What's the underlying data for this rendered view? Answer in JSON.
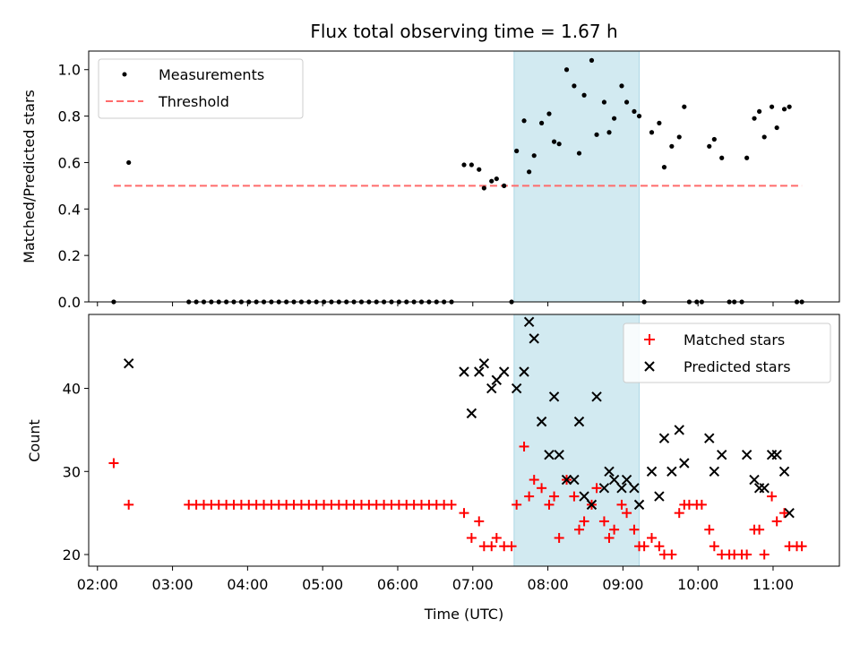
{
  "chart_data": [
    {
      "type": "scatter",
      "title": "Flux total observing time = 1.67 h",
      "ylabel": "Matched/Predicted stars",
      "xlabel": "",
      "xlim": [
        "01:53",
        "11:53"
      ],
      "ylim": [
        0.0,
        1.08
      ],
      "yticks": [
        "0.0",
        "0.2",
        "0.4",
        "0.6",
        "0.8",
        "1.0"
      ],
      "ytick_values": [
        0.0,
        0.2,
        0.4,
        0.6,
        0.8,
        1.0
      ],
      "shaded_interval": [
        "07:33",
        "09:13"
      ],
      "shade_color": "#add8e6",
      "legend": {
        "position": "top-left",
        "entries": [
          "Measurements",
          "Threshold"
        ]
      },
      "threshold": {
        "name": "Threshold",
        "y": 0.5,
        "x_range": [
          "02:13",
          "11:23"
        ],
        "color": "#ff6b6b"
      },
      "series": [
        {
          "name": "Measurements",
          "color": "#000000",
          "points": [
            [
              "02:13",
              0.0
            ],
            [
              "02:25",
              0.6
            ],
            [
              "03:13",
              0.0
            ],
            [
              "03:19",
              0.0
            ],
            [
              "03:25",
              0.0
            ],
            [
              "03:31",
              0.0
            ],
            [
              "03:37",
              0.0
            ],
            [
              "03:43",
              0.0
            ],
            [
              "03:49",
              0.0
            ],
            [
              "03:55",
              0.0
            ],
            [
              "04:01",
              0.0
            ],
            [
              "04:07",
              0.0
            ],
            [
              "04:13",
              0.0
            ],
            [
              "04:19",
              0.0
            ],
            [
              "04:25",
              0.0
            ],
            [
              "04:31",
              0.0
            ],
            [
              "04:37",
              0.0
            ],
            [
              "04:43",
              0.0
            ],
            [
              "04:49",
              0.0
            ],
            [
              "04:55",
              0.0
            ],
            [
              "05:01",
              0.0
            ],
            [
              "05:07",
              0.0
            ],
            [
              "05:13",
              0.0
            ],
            [
              "05:19",
              0.0
            ],
            [
              "05:25",
              0.0
            ],
            [
              "05:31",
              0.0
            ],
            [
              "05:37",
              0.0
            ],
            [
              "05:43",
              0.0
            ],
            [
              "05:49",
              0.0
            ],
            [
              "05:55",
              0.0
            ],
            [
              "06:01",
              0.0
            ],
            [
              "06:07",
              0.0
            ],
            [
              "06:13",
              0.0
            ],
            [
              "06:19",
              0.0
            ],
            [
              "06:25",
              0.0
            ],
            [
              "06:31",
              0.0
            ],
            [
              "06:37",
              0.0
            ],
            [
              "06:43",
              0.0
            ],
            [
              "06:53",
              0.59
            ],
            [
              "06:59",
              0.59
            ],
            [
              "07:05",
              0.57
            ],
            [
              "07:09",
              0.49
            ],
            [
              "07:15",
              0.52
            ],
            [
              "07:19",
              0.53
            ],
            [
              "07:25",
              0.5
            ],
            [
              "07:31",
              0.0
            ],
            [
              "07:35",
              0.65
            ],
            [
              "07:41",
              0.78
            ],
            [
              "07:45",
              0.56
            ],
            [
              "07:49",
              0.63
            ],
            [
              "07:55",
              0.77
            ],
            [
              "08:01",
              0.81
            ],
            [
              "08:05",
              0.69
            ],
            [
              "08:09",
              0.68
            ],
            [
              "08:15",
              1.0
            ],
            [
              "08:21",
              0.93
            ],
            [
              "08:25",
              0.64
            ],
            [
              "08:29",
              0.89
            ],
            [
              "08:35",
              1.04
            ],
            [
              "08:39",
              0.72
            ],
            [
              "08:45",
              0.86
            ],
            [
              "08:49",
              0.73
            ],
            [
              "08:53",
              0.79
            ],
            [
              "08:59",
              0.93
            ],
            [
              "09:03",
              0.86
            ],
            [
              "09:09",
              0.82
            ],
            [
              "09:13",
              0.8
            ],
            [
              "09:17",
              0.0
            ],
            [
              "09:23",
              0.73
            ],
            [
              "09:29",
              0.77
            ],
            [
              "09:33",
              0.58
            ],
            [
              "09:39",
              0.67
            ],
            [
              "09:45",
              0.71
            ],
            [
              "09:49",
              0.84
            ],
            [
              "09:53",
              0.0
            ],
            [
              "09:59",
              0.0
            ],
            [
              "10:03",
              0.0
            ],
            [
              "10:09",
              0.67
            ],
            [
              "10:13",
              0.7
            ],
            [
              "10:19",
              0.62
            ],
            [
              "10:25",
              0.0
            ],
            [
              "10:29",
              0.0
            ],
            [
              "10:35",
              0.0
            ],
            [
              "10:39",
              0.62
            ],
            [
              "10:45",
              0.79
            ],
            [
              "10:49",
              0.82
            ],
            [
              "10:53",
              0.71
            ],
            [
              "10:59",
              0.84
            ],
            [
              "11:03",
              0.75
            ],
            [
              "11:09",
              0.83
            ],
            [
              "11:13",
              0.84
            ],
            [
              "11:19",
              0.0
            ],
            [
              "11:23",
              0.0
            ]
          ]
        }
      ]
    },
    {
      "type": "scatter",
      "title": "",
      "xlabel": "Time (UTC)",
      "ylabel": "Count",
      "xlim": [
        "01:53",
        "11:53"
      ],
      "ylim": [
        18.6,
        48.9
      ],
      "xticks": [
        "02:00",
        "03:00",
        "04:00",
        "05:00",
        "06:00",
        "07:00",
        "08:00",
        "09:00",
        "10:00",
        "11:00"
      ],
      "yticks": [
        "20",
        "30",
        "40"
      ],
      "ytick_values": [
        20,
        30,
        40
      ],
      "shaded_interval": [
        "07:33",
        "09:13"
      ],
      "shade_color": "#add8e6",
      "legend": {
        "position": "top-right",
        "entries": [
          "Matched stars",
          "Predicted stars"
        ]
      },
      "series": [
        {
          "name": "Matched stars",
          "marker": "plus",
          "color": "#ff0000",
          "points": [
            [
              "02:13",
              31
            ],
            [
              "02:25",
              26
            ],
            [
              "03:13",
              26
            ],
            [
              "03:19",
              26
            ],
            [
              "03:25",
              26
            ],
            [
              "03:31",
              26
            ],
            [
              "03:37",
              26
            ],
            [
              "03:43",
              26
            ],
            [
              "03:49",
              26
            ],
            [
              "03:55",
              26
            ],
            [
              "04:01",
              26
            ],
            [
              "04:07",
              26
            ],
            [
              "04:13",
              26
            ],
            [
              "04:19",
              26
            ],
            [
              "04:25",
              26
            ],
            [
              "04:31",
              26
            ],
            [
              "04:37",
              26
            ],
            [
              "04:43",
              26
            ],
            [
              "04:49",
              26
            ],
            [
              "04:55",
              26
            ],
            [
              "05:01",
              26
            ],
            [
              "05:07",
              26
            ],
            [
              "05:13",
              26
            ],
            [
              "05:19",
              26
            ],
            [
              "05:25",
              26
            ],
            [
              "05:31",
              26
            ],
            [
              "05:37",
              26
            ],
            [
              "05:43",
              26
            ],
            [
              "05:49",
              26
            ],
            [
              "05:55",
              26
            ],
            [
              "06:01",
              26
            ],
            [
              "06:07",
              26
            ],
            [
              "06:13",
              26
            ],
            [
              "06:19",
              26
            ],
            [
              "06:25",
              26
            ],
            [
              "06:31",
              26
            ],
            [
              "06:37",
              26
            ],
            [
              "06:43",
              26
            ],
            [
              "06:53",
              25
            ],
            [
              "06:59",
              22
            ],
            [
              "07:05",
              24
            ],
            [
              "07:09",
              21
            ],
            [
              "07:15",
              21
            ],
            [
              "07:19",
              22
            ],
            [
              "07:25",
              21
            ],
            [
              "07:31",
              21
            ],
            [
              "07:35",
              26
            ],
            [
              "07:41",
              33
            ],
            [
              "07:45",
              27
            ],
            [
              "07:49",
              29
            ],
            [
              "07:55",
              28
            ],
            [
              "08:01",
              26
            ],
            [
              "08:05",
              27
            ],
            [
              "08:09",
              22
            ],
            [
              "08:15",
              29
            ],
            [
              "08:21",
              27
            ],
            [
              "08:25",
              23
            ],
            [
              "08:29",
              24
            ],
            [
              "08:35",
              26
            ],
            [
              "08:39",
              28
            ],
            [
              "08:45",
              24
            ],
            [
              "08:49",
              22
            ],
            [
              "08:53",
              23
            ],
            [
              "08:59",
              26
            ],
            [
              "09:03",
              25
            ],
            [
              "09:09",
              23
            ],
            [
              "09:13",
              21
            ],
            [
              "09:17",
              21
            ],
            [
              "09:23",
              22
            ],
            [
              "09:29",
              21
            ],
            [
              "09:33",
              20
            ],
            [
              "09:39",
              20
            ],
            [
              "09:45",
              25
            ],
            [
              "09:49",
              26
            ],
            [
              "09:53",
              26
            ],
            [
              "09:59",
              26
            ],
            [
              "10:03",
              26
            ],
            [
              "10:09",
              23
            ],
            [
              "10:13",
              21
            ],
            [
              "10:19",
              20
            ],
            [
              "10:25",
              20
            ],
            [
              "10:29",
              20
            ],
            [
              "10:35",
              20
            ],
            [
              "10:39",
              20
            ],
            [
              "10:45",
              23
            ],
            [
              "10:49",
              23
            ],
            [
              "10:53",
              20
            ],
            [
              "10:59",
              27
            ],
            [
              "11:03",
              24
            ],
            [
              "11:09",
              25
            ],
            [
              "11:13",
              21
            ],
            [
              "11:19",
              21
            ],
            [
              "11:23",
              21
            ]
          ]
        },
        {
          "name": "Predicted stars",
          "marker": "x",
          "color": "#000000",
          "points": [
            [
              "02:25",
              43
            ],
            [
              "06:53",
              42
            ],
            [
              "06:59",
              37
            ],
            [
              "07:05",
              42
            ],
            [
              "07:09",
              43
            ],
            [
              "07:15",
              40
            ],
            [
              "07:19",
              41
            ],
            [
              "07:25",
              42
            ],
            [
              "07:35",
              40
            ],
            [
              "07:41",
              42
            ],
            [
              "07:45",
              48
            ],
            [
              "07:49",
              46
            ],
            [
              "07:55",
              36
            ],
            [
              "08:01",
              32
            ],
            [
              "08:05",
              39
            ],
            [
              "08:09",
              32
            ],
            [
              "08:15",
              29
            ],
            [
              "08:21",
              29
            ],
            [
              "08:25",
              36
            ],
            [
              "08:29",
              27
            ],
            [
              "08:35",
              26
            ],
            [
              "08:39",
              39
            ],
            [
              "08:45",
              28
            ],
            [
              "08:49",
              30
            ],
            [
              "08:53",
              29
            ],
            [
              "08:59",
              28
            ],
            [
              "09:03",
              29
            ],
            [
              "09:09",
              28
            ],
            [
              "09:13",
              26
            ],
            [
              "09:23",
              30
            ],
            [
              "09:29",
              27
            ],
            [
              "09:33",
              34
            ],
            [
              "09:39",
              30
            ],
            [
              "09:45",
              35
            ],
            [
              "09:49",
              31
            ],
            [
              "10:09",
              34
            ],
            [
              "10:13",
              30
            ],
            [
              "10:19",
              32
            ],
            [
              "10:39",
              32
            ],
            [
              "10:45",
              29
            ],
            [
              "10:49",
              28
            ],
            [
              "10:53",
              28
            ],
            [
              "10:59",
              32
            ],
            [
              "11:03",
              32
            ],
            [
              "11:09",
              30
            ],
            [
              "11:13",
              25
            ]
          ]
        }
      ]
    }
  ]
}
